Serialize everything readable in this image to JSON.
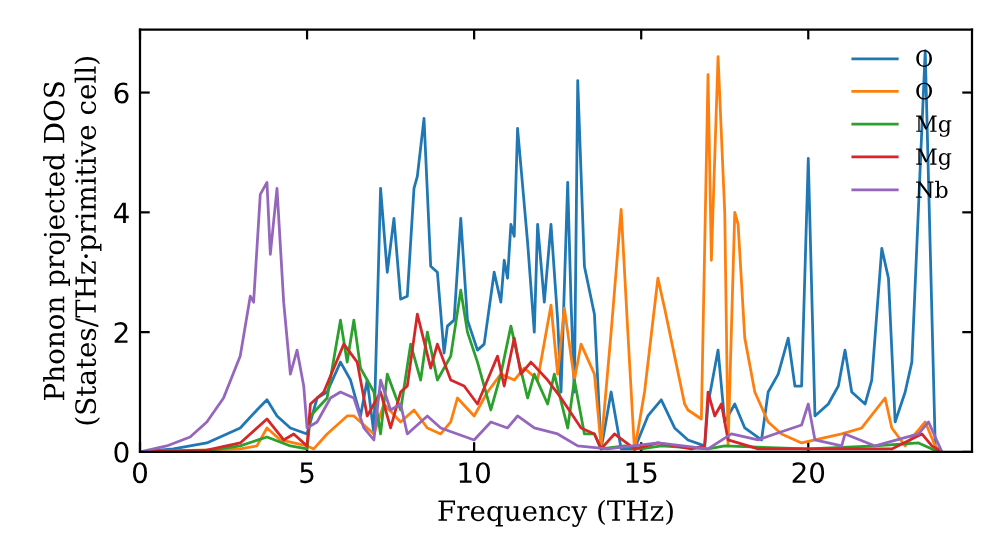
{
  "chart_data": {
    "type": "line",
    "xlabel": "Frequency (THz)",
    "ylabel": "Phonon projected DOS\n(States/THz·primitive cell)",
    "xlim": [
      0,
      24.9
    ],
    "ylim": [
      0,
      7.05
    ],
    "xticks": [
      0,
      5,
      10,
      15,
      20
    ],
    "yticks": [
      0,
      2,
      4,
      6
    ],
    "grid": false,
    "legend": "top right",
    "marker": "none",
    "line_style": "solid",
    "series": [
      {
        "name": "O",
        "color": "#1f77b4",
        "x": [
          0,
          1,
          2,
          3,
          3.5,
          3.8,
          4.1,
          4.5,
          5,
          5.3,
          5.6,
          6.0,
          6.3,
          6.6,
          6.8,
          7.0,
          7.2,
          7.4,
          7.6,
          7.8,
          8.0,
          8.2,
          8.3,
          8.5,
          8.7,
          8.9,
          9.1,
          9.2,
          9.4,
          9.6,
          9.8,
          10.1,
          10.3,
          10.6,
          10.8,
          10.9,
          11.0,
          11.1,
          11.2,
          11.3,
          11.6,
          11.8,
          11.9,
          12.1,
          12.3,
          12.5,
          12.6,
          12.8,
          12.9,
          13.0,
          13.1,
          13.3,
          13.6,
          13.8,
          14.1,
          14.4,
          14.8,
          15.2,
          15.6,
          16.0,
          16.4,
          16.9,
          17.0,
          17.3,
          17.5,
          17.8,
          18.1,
          18.6,
          18.8,
          19.1,
          19.4,
          19.6,
          19.8,
          20.0,
          20.2,
          20.6,
          20.9,
          21.1,
          21.3,
          21.7,
          21.9,
          22.2,
          22.4,
          22.6,
          22.9,
          23.1,
          23.5,
          23.6,
          23.8,
          23.9
        ],
        "values": [
          0,
          0.05,
          0.15,
          0.4,
          0.7,
          0.87,
          0.6,
          0.4,
          0.3,
          0.9,
          1.0,
          1.5,
          1.2,
          0.6,
          1.2,
          0.3,
          4.4,
          3.0,
          3.9,
          2.55,
          2.6,
          4.4,
          4.6,
          5.57,
          3.1,
          3.0,
          1.65,
          2.1,
          2.2,
          3.9,
          2.2,
          1.7,
          1.8,
          3.0,
          2.5,
          3.2,
          2.9,
          3.8,
          3.6,
          5.4,
          3.5,
          2.0,
          3.8,
          2.5,
          3.8,
          2.2,
          1.0,
          4.5,
          2.5,
          1.0,
          6.2,
          3.1,
          2.3,
          0.05,
          1.0,
          0.05,
          0.05,
          0.6,
          0.87,
          0.4,
          0.2,
          0.1,
          0.8,
          1.7,
          0.5,
          0.8,
          0.4,
          0.2,
          1.0,
          1.3,
          1.9,
          1.1,
          1.1,
          4.9,
          0.6,
          0.8,
          1.1,
          1.7,
          1.0,
          0.8,
          1.2,
          3.4,
          2.9,
          0.5,
          1.0,
          1.5,
          6.7,
          4.5,
          0.1,
          0
        ]
      },
      {
        "name": "O",
        "color": "#ff7f0e",
        "x": [
          0,
          3,
          3.5,
          3.8,
          4.2,
          5,
          5.2,
          5.6,
          6.2,
          6.4,
          6.6,
          7.0,
          7.3,
          7.8,
          8.2,
          8.6,
          9.0,
          9.3,
          9.5,
          10.0,
          10.4,
          10.8,
          11.2,
          11.5,
          11.9,
          12.3,
          12.5,
          12.7,
          13.0,
          13.2,
          13.6,
          13.8,
          14.1,
          14.4,
          14.6,
          14.8,
          15.1,
          15.5,
          15.7,
          16.0,
          16.3,
          16.4,
          16.8,
          17.0,
          17.1,
          17.3,
          17.5,
          17.6,
          17.8,
          17.9,
          18.1,
          18.4,
          18.8,
          19.2,
          19.8,
          20.2,
          21.0,
          21.6,
          22.3,
          22.5,
          22.9,
          23.5,
          23.8,
          24.0
        ],
        "values": [
          0,
          0.05,
          0.1,
          0.4,
          0.2,
          0.1,
          0.05,
          0.3,
          0.6,
          0.6,
          0.5,
          0.3,
          0.8,
          0.5,
          0.7,
          0.4,
          0.3,
          0.5,
          0.9,
          0.6,
          1.0,
          1.3,
          1.2,
          1.4,
          1.2,
          2.45,
          1.3,
          2.4,
          1.2,
          1.8,
          1.3,
          0.1,
          2.0,
          4.05,
          2.0,
          0.02,
          1.0,
          2.9,
          2.4,
          1.6,
          0.8,
          0.7,
          0.55,
          6.3,
          3.2,
          6.6,
          4.0,
          0.1,
          4.0,
          3.8,
          1.9,
          1.0,
          0.5,
          0.3,
          0.15,
          0.2,
          0.3,
          0.4,
          0.9,
          0.4,
          0.1,
          0.5,
          0.1,
          0
        ]
      },
      {
        "name": "Mg",
        "color": "#2ca02c",
        "x": [
          0,
          2,
          3,
          3.8,
          4.5,
          5,
          5.1,
          5.6,
          6.0,
          6.2,
          6.4,
          6.6,
          7.0,
          7.2,
          7.4,
          7.8,
          8.1,
          8.4,
          8.6,
          8.9,
          9.3,
          9.6,
          9.8,
          10.1,
          10.5,
          10.8,
          11.1,
          11.3,
          11.6,
          11.8,
          12.2,
          12.4,
          12.8,
          13.0,
          13.3,
          13.6,
          13.8,
          14.5,
          15,
          15.6,
          17,
          17.5,
          20,
          22,
          23.3,
          23.9
        ],
        "values": [
          0,
          0.02,
          0.1,
          0.25,
          0.1,
          0.05,
          0.6,
          0.9,
          2.2,
          1.5,
          2.2,
          1.4,
          1.0,
          0.3,
          1.3,
          0.7,
          1.8,
          1.2,
          2.0,
          1.2,
          1.6,
          2.7,
          2.0,
          1.5,
          0.7,
          1.3,
          2.1,
          1.6,
          0.9,
          1.3,
          0.8,
          1.3,
          0.4,
          1.2,
          0.3,
          0.3,
          0.05,
          0.1,
          0.05,
          0.1,
          0.05,
          0.1,
          0.05,
          0.1,
          0.15,
          0
        ]
      },
      {
        "name": "Mg",
        "color": "#d62728",
        "x": [
          0,
          2,
          3,
          3.8,
          4.3,
          4.6,
          5,
          5.1,
          5.5,
          6.1,
          6.5,
          6.8,
          7.2,
          7.5,
          7.8,
          8.0,
          8.3,
          8.7,
          8.9,
          9.3,
          9.7,
          10.1,
          10.4,
          10.7,
          10.9,
          11.2,
          11.4,
          11.7,
          12.2,
          12.6,
          13.2,
          13.6,
          13.8,
          14.2,
          14.8,
          15.5,
          16.5,
          16.9,
          17.0,
          17.2,
          17.4,
          17.6,
          18.5,
          22.5,
          23.4,
          23.7,
          24.0
        ],
        "values": [
          0,
          0.03,
          0.15,
          0.55,
          0.2,
          0.3,
          0.1,
          0.8,
          1.0,
          1.8,
          1.5,
          0.6,
          1.0,
          0.4,
          1.0,
          1.1,
          2.3,
          1.4,
          1.8,
          1.2,
          1.1,
          0.8,
          1.2,
          1.6,
          1.1,
          1.9,
          1.3,
          1.5,
          1.2,
          0.9,
          0.4,
          0.3,
          0.05,
          0.3,
          0.05,
          0.15,
          0.05,
          0.1,
          1.0,
          0.6,
          0.8,
          0.2,
          0.05,
          0.05,
          0.3,
          0.1,
          0
        ]
      },
      {
        "name": "Nb",
        "color": "#9467bd",
        "x": [
          0,
          0.8,
          1.5,
          2.0,
          2.5,
          3.0,
          3.3,
          3.4,
          3.6,
          3.8,
          3.9,
          4.1,
          4.3,
          4.5,
          4.7,
          4.9,
          5.0,
          5.3,
          5.7,
          6.0,
          6.4,
          6.7,
          7.0,
          7.2,
          7.5,
          7.8,
          8.0,
          8.6,
          9.0,
          9.5,
          10.0,
          10.5,
          11.0,
          11.3,
          11.8,
          12.5,
          13.1,
          14,
          15.5,
          17,
          17.7,
          18.5,
          19.0,
          19.8,
          20.0,
          20.2,
          21.0,
          21.1,
          22,
          23.3,
          23.6,
          24.0
        ],
        "values": [
          0,
          0.1,
          0.25,
          0.5,
          0.9,
          1.6,
          2.6,
          2.5,
          4.3,
          4.5,
          3.3,
          4.4,
          2.5,
          1.3,
          1.7,
          1.1,
          0.4,
          0.5,
          0.9,
          1.0,
          0.9,
          0.4,
          0.2,
          1.2,
          0.7,
          0.8,
          0.3,
          0.6,
          0.4,
          0.3,
          0.2,
          0.5,
          0.4,
          0.6,
          0.4,
          0.3,
          0.1,
          0.05,
          0.15,
          0.05,
          0.3,
          0.2,
          0.3,
          0.45,
          0.8,
          0.2,
          0.1,
          0.3,
          0.1,
          0.3,
          0.5,
          0
        ]
      }
    ]
  }
}
